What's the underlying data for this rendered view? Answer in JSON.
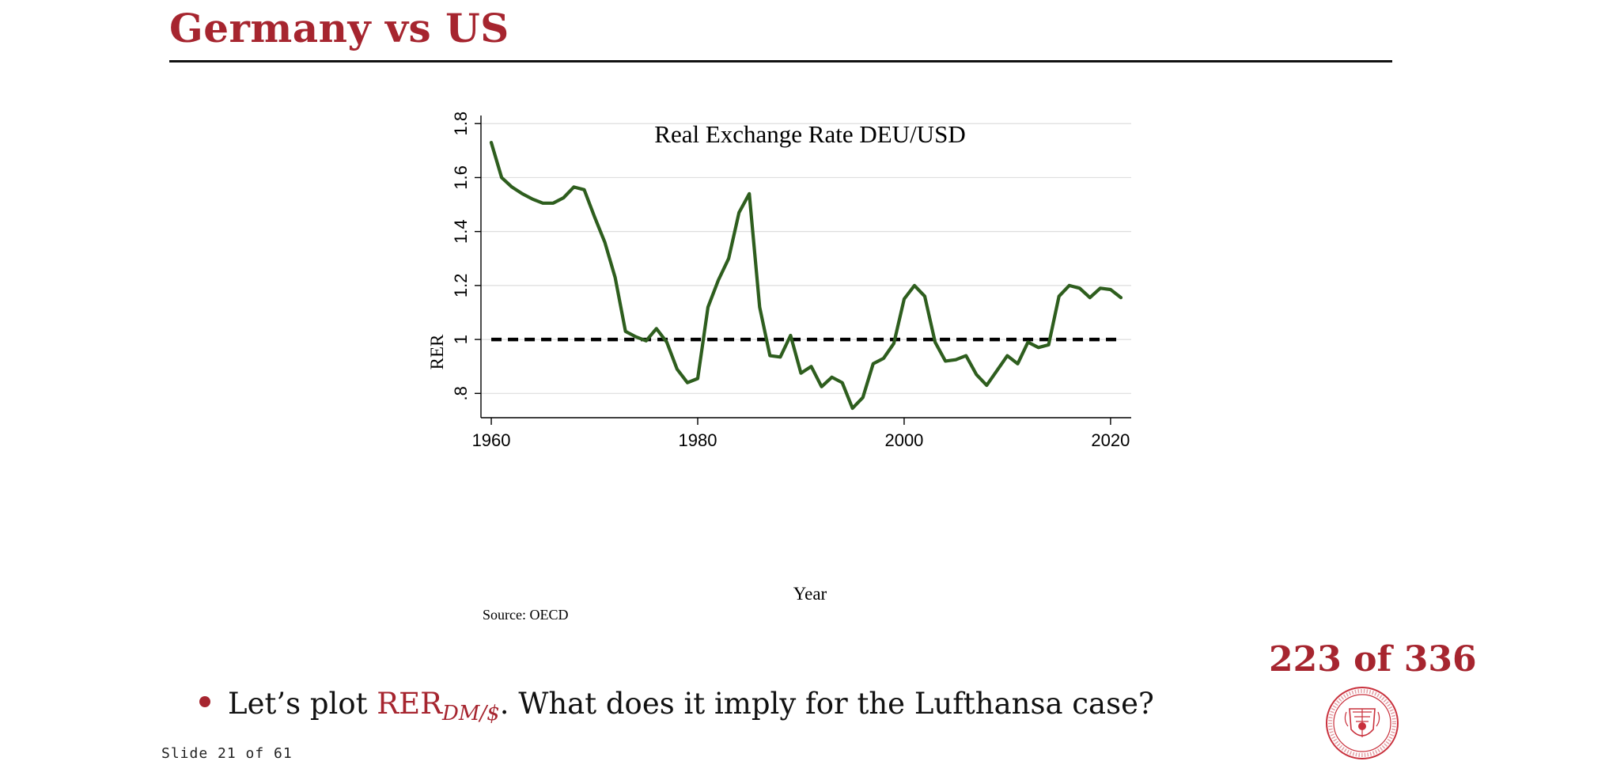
{
  "slide": {
    "title": "Germany vs US",
    "bullet": {
      "prefix": "Let’s plot ",
      "rer_main": "RER",
      "rer_sub": "DM/$",
      "suffix": ". What does it imply for the Lufthansa case?"
    },
    "page_counter": "223 of 336",
    "slide_number": "Slide 21 of 61",
    "accent_color": "#a6252f",
    "seal_icon": "carnegie-mellon-university-seal"
  },
  "chart_data": {
    "type": "line",
    "title": "Real Exchange Rate DEU/USD",
    "xlabel": "Year",
    "ylabel": "RER",
    "source_note": "Source: OECD",
    "xlim": [
      1959,
      2022
    ],
    "ylim": [
      0.71,
      1.83
    ],
    "x_ticks": [
      1960,
      1980,
      2000,
      2020
    ],
    "y_ticks": [
      0.8,
      1.0,
      1.2,
      1.4,
      1.6,
      1.8
    ],
    "y_tick_labels": [
      ".8",
      "1",
      "1.2",
      "1.4",
      "1.6",
      "1.8"
    ],
    "grid": true,
    "reference_line": {
      "y": 1.0,
      "style": "dashed",
      "color": "#000000"
    },
    "series": [
      {
        "color": "#2e5e1e",
        "x": [
          1960,
          1961,
          1962,
          1963,
          1964,
          1965,
          1966,
          1967,
          1968,
          1969,
          1970,
          1971,
          1972,
          1973,
          1974,
          1975,
          1976,
          1977,
          1978,
          1979,
          1980,
          1981,
          1982,
          1983,
          1984,
          1985,
          1986,
          1987,
          1988,
          1989,
          1990,
          1991,
          1992,
          1993,
          1994,
          1995,
          1996,
          1997,
          1998,
          1999,
          2000,
          2001,
          2002,
          2003,
          2004,
          2005,
          2006,
          2007,
          2008,
          2009,
          2010,
          2011,
          2012,
          2013,
          2014,
          2015,
          2016,
          2017,
          2018,
          2019,
          2020,
          2021
        ],
        "y": [
          1.73,
          1.6,
          1.565,
          1.54,
          1.52,
          1.505,
          1.505,
          1.525,
          1.565,
          1.555,
          1.455,
          1.36,
          1.23,
          1.03,
          1.01,
          0.995,
          1.04,
          0.99,
          0.89,
          0.84,
          0.855,
          1.12,
          1.22,
          1.3,
          1.47,
          1.54,
          1.12,
          0.94,
          0.935,
          1.015,
          0.875,
          0.9,
          0.825,
          0.86,
          0.84,
          0.745,
          0.785,
          0.91,
          0.93,
          0.985,
          1.15,
          1.2,
          1.16,
          0.99,
          0.92,
          0.925,
          0.94,
          0.87,
          0.83,
          0.885,
          0.94,
          0.91,
          0.99,
          0.97,
          0.98,
          1.16,
          1.2,
          1.19,
          1.155,
          1.19,
          1.185,
          1.155
        ]
      }
    ]
  }
}
